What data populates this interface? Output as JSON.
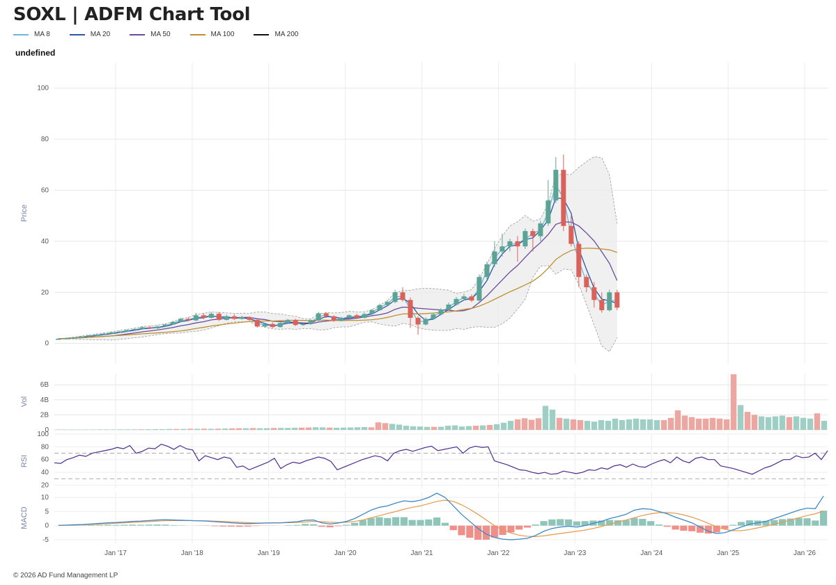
{
  "title": "SOXL | ADFM Chart Tool",
  "subtitle": "undefined",
  "footer": "© 2026 AD Fund Management LP",
  "legend": [
    {
      "label": "MA 8",
      "color": "#6fb8dc"
    },
    {
      "label": "MA 20",
      "color": "#2d56a8"
    },
    {
      "label": "MA 50",
      "color": "#6a4a9c"
    },
    {
      "label": "MA 100",
      "color": "#c0902e"
    },
    {
      "label": "MA 200",
      "color": "#111111"
    }
  ],
  "colors": {
    "up": "#5ba495",
    "down": "#d9625a",
    "rsi": "#4b2b8f",
    "macd": "#3f88c5",
    "signal": "#e39a4a",
    "band": "#ececec"
  },
  "chart_data": [
    {
      "type": "candlestick",
      "panel": "price",
      "ylabel": "Price",
      "ylim": [
        -8,
        110
      ],
      "yticks": [
        0,
        20,
        40,
        60,
        80,
        100
      ],
      "xticks": [
        "Jan '17",
        "Jan '18",
        "Jan '19",
        "Jan '20",
        "Jan '21",
        "Jan '22",
        "Jan '23",
        "Jan '24",
        "Jan '25",
        "Jan '26"
      ],
      "xrange": [
        2016.2,
        2026.3
      ],
      "grid": true,
      "candles": [
        [
          2016.25,
          1.6,
          1.8,
          1.4,
          2.0
        ],
        [
          2016.35,
          1.8,
          2.0,
          1.7,
          2.2
        ],
        [
          2016.45,
          2.0,
          2.3,
          1.9,
          2.5
        ],
        [
          2016.55,
          2.3,
          2.7,
          2.2,
          2.9
        ],
        [
          2016.65,
          2.7,
          3.1,
          2.6,
          3.3
        ],
        [
          2016.75,
          3.1,
          3.4,
          2.9,
          3.6
        ],
        [
          2016.85,
          3.4,
          3.8,
          3.2,
          4.0
        ],
        [
          2016.95,
          3.8,
          4.3,
          3.6,
          4.5
        ],
        [
          2017.05,
          4.3,
          4.6,
          4.0,
          4.9
        ],
        [
          2017.15,
          4.6,
          5.2,
          4.4,
          5.4
        ],
        [
          2017.25,
          5.2,
          5.6,
          5.0,
          6.0
        ],
        [
          2017.35,
          5.6,
          6.3,
          5.4,
          6.6
        ],
        [
          2017.45,
          6.3,
          5.9,
          5.6,
          6.8
        ],
        [
          2017.55,
          5.9,
          6.6,
          5.7,
          7.0
        ],
        [
          2017.65,
          6.6,
          7.4,
          6.4,
          7.8
        ],
        [
          2017.75,
          7.4,
          8.4,
          7.2,
          8.8
        ],
        [
          2017.85,
          8.4,
          9.6,
          8.2,
          10.0
        ],
        [
          2017.95,
          9.6,
          9.0,
          8.6,
          10.2
        ],
        [
          2018.05,
          9.0,
          11.0,
          8.8,
          12.0
        ],
        [
          2018.15,
          11.0,
          10.0,
          9.5,
          11.8
        ],
        [
          2018.25,
          10.0,
          11.6,
          9.8,
          12.2
        ],
        [
          2018.35,
          11.6,
          9.2,
          8.8,
          12.4
        ],
        [
          2018.45,
          9.2,
          10.6,
          9.0,
          11.2
        ],
        [
          2018.55,
          10.6,
          9.6,
          9.2,
          11.4
        ],
        [
          2018.65,
          9.6,
          10.2,
          9.3,
          10.8
        ],
        [
          2018.75,
          10.2,
          9.2,
          8.8,
          10.6
        ],
        [
          2018.85,
          9.2,
          6.6,
          6.2,
          9.6
        ],
        [
          2018.95,
          6.6,
          7.6,
          6.3,
          8.0
        ],
        [
          2019.05,
          7.6,
          6.4,
          6.0,
          8.2
        ],
        [
          2019.15,
          6.4,
          8.0,
          6.2,
          8.4
        ],
        [
          2019.25,
          8.0,
          9.2,
          7.8,
          9.6
        ],
        [
          2019.35,
          9.2,
          7.2,
          6.8,
          9.6
        ],
        [
          2019.45,
          7.2,
          7.6,
          6.9,
          8.0
        ],
        [
          2019.55,
          7.6,
          9.0,
          7.3,
          9.4
        ],
        [
          2019.65,
          9.0,
          11.8,
          8.7,
          12.4
        ],
        [
          2019.75,
          11.8,
          10.6,
          10.0,
          12.2
        ],
        [
          2019.85,
          10.6,
          8.8,
          8.4,
          11.0
        ],
        [
          2019.95,
          8.8,
          10.0,
          8.6,
          10.4
        ],
        [
          2020.05,
          10.0,
          11.0,
          9.6,
          11.4
        ],
        [
          2020.15,
          11.0,
          10.0,
          9.6,
          11.6
        ],
        [
          2020.25,
          10.0,
          11.5,
          9.8,
          12.0
        ],
        [
          2020.35,
          11.5,
          13.0,
          11.2,
          13.5
        ],
        [
          2020.45,
          13.0,
          15.0,
          12.8,
          15.6
        ],
        [
          2020.55,
          15.0,
          16.2,
          14.6,
          16.8
        ],
        [
          2020.65,
          16.2,
          20.0,
          15.8,
          21.0
        ],
        [
          2020.75,
          20.0,
          17.0,
          16.4,
          22.0
        ],
        [
          2020.85,
          17.0,
          10.0,
          6.0,
          18.0
        ],
        [
          2020.95,
          10.0,
          7.4,
          3.4,
          10.6
        ],
        [
          2021.05,
          7.4,
          9.6,
          7.0,
          10.2
        ],
        [
          2021.15,
          9.6,
          11.4,
          9.2,
          12.0
        ],
        [
          2021.25,
          11.4,
          13.2,
          11.0,
          13.8
        ],
        [
          2021.35,
          13.2,
          15.2,
          12.8,
          16.0
        ],
        [
          2021.45,
          15.2,
          17.4,
          14.8,
          18.2
        ],
        [
          2021.55,
          17.4,
          18.4,
          16.8,
          19.4
        ],
        [
          2021.65,
          18.4,
          16.8,
          16.2,
          19.2
        ],
        [
          2021.75,
          16.8,
          26.0,
          16.4,
          27.0
        ],
        [
          2021.85,
          26.0,
          31.0,
          25.0,
          32.0
        ],
        [
          2021.95,
          31.0,
          36.0,
          30.0,
          40.0
        ],
        [
          2022.05,
          36.0,
          38.0,
          34.0,
          43.0
        ],
        [
          2022.15,
          38.0,
          40.0,
          36.0,
          41.0
        ],
        [
          2022.25,
          40.0,
          38.0,
          32.0,
          42.0
        ],
        [
          2022.35,
          38.0,
          44.0,
          37.0,
          45.0
        ],
        [
          2022.45,
          44.0,
          42.0,
          36.0,
          45.0
        ],
        [
          2022.55,
          42.0,
          47.0,
          40.0,
          48.0
        ],
        [
          2022.65,
          47.0,
          56.0,
          46.0,
          64.0
        ],
        [
          2022.75,
          56.0,
          68.0,
          55.0,
          73.0
        ],
        [
          2022.85,
          68.0,
          46.0,
          44.0,
          74.0
        ],
        [
          2022.95,
          46.0,
          39.0,
          38.0,
          50.0
        ],
        [
          2023.05,
          39.0,
          26.0,
          22.0,
          40.0
        ],
        [
          2023.15,
          26.0,
          22.0,
          20.0,
          27.0
        ],
        [
          2023.25,
          22.0,
          17.0,
          14.0,
          24.0
        ],
        [
          2023.35,
          17.0,
          13.0,
          12.0,
          20.0
        ],
        [
          2023.45,
          13.0,
          20.0,
          12.5,
          21.0
        ],
        [
          2023.55,
          20.0,
          14.0,
          13.0,
          21.0
        ]
      ],
      "note_candles": "candles are [x_year, open, close, low, high]"
    },
    {
      "type": "bar",
      "panel": "volume",
      "ylabel": "Vol",
      "yticks": [
        "0",
        "2B",
        "4B",
        "6B"
      ],
      "ylim": [
        0,
        7.5
      ],
      "values": [
        0.05,
        0.05,
        0.05,
        0.05,
        0.05,
        0.05,
        0.06,
        0.06,
        0.06,
        0.07,
        0.07,
        0.07,
        0.08,
        0.09,
        0.1,
        0.1,
        0.12,
        0.12,
        0.13,
        0.15,
        0.14,
        0.16,
        0.15,
        0.16,
        0.18,
        0.2,
        0.22,
        0.22,
        0.24,
        0.22,
        0.22,
        0.25,
        0.26,
        0.26,
        0.28,
        0.3,
        0.32,
        0.35,
        0.34,
        0.3,
        0.28,
        0.3,
        0.32,
        0.35,
        0.38,
        0.34,
        1.0,
        0.9,
        0.8,
        0.7,
        0.55,
        0.48,
        0.45,
        0.4,
        0.4,
        0.42,
        0.55,
        0.6,
        0.45,
        0.5,
        0.55,
        0.6,
        0.65,
        0.75,
        0.95,
        1.2,
        1.4,
        1.55,
        1.35,
        1.55,
        3.2,
        2.7,
        1.6,
        1.5,
        1.4,
        1.3,
        1.2,
        1.1,
        1.3,
        1.2,
        1.5,
        1.3,
        1.4,
        1.5,
        1.4,
        1.4,
        1.3,
        1.3,
        1.6,
        2.6,
        1.9,
        1.7,
        1.5,
        1.5,
        1.6,
        1.5,
        1.4,
        7.4,
        3.3,
        2.4,
        2.0,
        1.8,
        1.7,
        1.8,
        1.9,
        1.7,
        1.8,
        1.6,
        1.5,
        2.2,
        1.2
      ],
      "up_flags": [
        1,
        1,
        1,
        1,
        1,
        1,
        1,
        1,
        1,
        1,
        1,
        1,
        0,
        1,
        1,
        1,
        1,
        0,
        1,
        0,
        1,
        0,
        1,
        0,
        1,
        0,
        0,
        1,
        0,
        1,
        1,
        0,
        1,
        1,
        1,
        0,
        0,
        1,
        1,
        0,
        1,
        1,
        1,
        1,
        1,
        0,
        0,
        0,
        1,
        1,
        1,
        1,
        1,
        1,
        0,
        1,
        1,
        1,
        1,
        1,
        0,
        1,
        0,
        1,
        1,
        1,
        0,
        0,
        0,
        0,
        1,
        1,
        0,
        1,
        0,
        0,
        1,
        1,
        1,
        1,
        1,
        1,
        1,
        1,
        1,
        1,
        1,
        0,
        0,
        0,
        0,
        0,
        0,
        0,
        0,
        0,
        0,
        0,
        1,
        0,
        0,
        1,
        1,
        1,
        1,
        0,
        1,
        1,
        1,
        0,
        1
      ]
    },
    {
      "type": "line",
      "panel": "rsi",
      "ylabel": "RSI",
      "yticks": [
        20,
        40,
        60,
        80,
        100
      ],
      "ylim": [
        15,
        100
      ],
      "reference_lines": [
        70,
        30
      ],
      "values": [
        55,
        54,
        60,
        63,
        67,
        65,
        70,
        72,
        74,
        76,
        79,
        77,
        82,
        70,
        73,
        78,
        77,
        84,
        81,
        76,
        82,
        77,
        75,
        58,
        66,
        63,
        60,
        64,
        62,
        48,
        50,
        44,
        48,
        52,
        56,
        62,
        46,
        52,
        56,
        54,
        58,
        61,
        64,
        62,
        57,
        44,
        48,
        52,
        56,
        60,
        63,
        66,
        64,
        58,
        70,
        74,
        76,
        73,
        76,
        79,
        81,
        74,
        76,
        78,
        80,
        70,
        78,
        81,
        79,
        80,
        58,
        55,
        52,
        48,
        44,
        43,
        40,
        38,
        40,
        37,
        38,
        42,
        40,
        38,
        40,
        44,
        43,
        47,
        45,
        50,
        52,
        48,
        53,
        49,
        48,
        53,
        57,
        60,
        55,
        64,
        58,
        55,
        62,
        64,
        60,
        60,
        50,
        48,
        46,
        43,
        40,
        37,
        42,
        47,
        50,
        55,
        60,
        60,
        66,
        63,
        64,
        70,
        60,
        74
      ]
    },
    {
      "type": "bar+line",
      "panel": "macd",
      "ylabel": "MACD",
      "yticks": [
        -5,
        0,
        5,
        10
      ],
      "ylim": [
        -6.5,
        12
      ],
      "macd": [
        0.1,
        0.2,
        0.3,
        0.4,
        0.6,
        0.8,
        1.0,
        1.1,
        1.3,
        1.5,
        1.6,
        1.8,
        2.0,
        2.1,
        2.0,
        1.9,
        1.8,
        1.7,
        1.6,
        1.4,
        1.2,
        1.0,
        0.8,
        0.7,
        0.8,
        0.9,
        1.0,
        1.0,
        1.2,
        1.4,
        1.9,
        2.0,
        1.0,
        0.6,
        0.9,
        1.5,
        2.5,
        4.0,
        5.5,
        6.5,
        7.0,
        8.0,
        8.8,
        8.5,
        9.0,
        10.0,
        11.5,
        10.0,
        7.0,
        4.0,
        1.5,
        -1.0,
        -3.0,
        -4.2,
        -4.8,
        -5.0,
        -4.8,
        -4.5,
        -3.5,
        -2.0,
        -1.0,
        -0.5,
        -0.2,
        -0.5,
        0.0,
        0.8,
        1.5,
        2.5,
        3.2,
        4.0,
        5.5,
        6.0,
        5.8,
        5.0,
        4.2,
        3.0,
        2.0,
        1.0,
        -0.5,
        -2.0,
        -2.8,
        -2.5,
        -1.5,
        -0.5,
        0.5,
        1.0,
        1.5,
        2.5,
        3.5,
        4.5,
        5.5,
        6.2,
        6.0,
        10.5
      ],
      "signal": [
        0.1,
        0.15,
        0.2,
        0.3,
        0.4,
        0.55,
        0.7,
        0.85,
        1.0,
        1.15,
        1.3,
        1.45,
        1.6,
        1.75,
        1.8,
        1.8,
        1.8,
        1.75,
        1.7,
        1.6,
        1.5,
        1.35,
        1.2,
        1.05,
        0.95,
        0.95,
        0.95,
        1.0,
        1.05,
        1.15,
        1.3,
        1.5,
        1.4,
        1.2,
        1.1,
        1.2,
        1.5,
        2.0,
        2.8,
        3.5,
        4.3,
        5.0,
        5.8,
        6.5,
        7.0,
        7.8,
        8.6,
        9.0,
        8.6,
        7.4,
        5.8,
        4.0,
        2.0,
        0.0,
        -1.5,
        -2.6,
        -3.4,
        -3.8,
        -3.9,
        -3.6,
        -3.2,
        -2.8,
        -2.4,
        -2.0,
        -1.6,
        -1.0,
        -0.3,
        0.5,
        1.3,
        2.0,
        2.8,
        3.6,
        4.2,
        4.6,
        4.6,
        4.4,
        3.8,
        3.0,
        2.0,
        0.8,
        -0.4,
        -1.3,
        -1.8,
        -1.8,
        -1.4,
        -0.8,
        -0.2,
        0.5,
        1.2,
        2.0,
        2.8,
        3.6,
        4.2,
        5.2
      ]
    }
  ]
}
